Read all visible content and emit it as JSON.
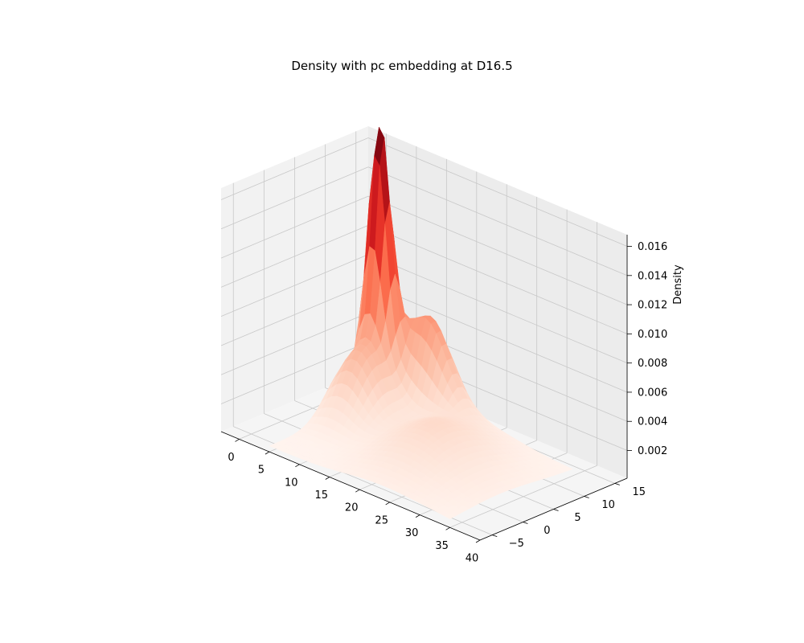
{
  "chart_data": {
    "type": "surface3d",
    "title": "Density with pc embedding at D16.5",
    "xlabel": "",
    "ylabel": "",
    "zlabel": "Density",
    "colormap": "Reds",
    "xlim": [
      -3,
      40
    ],
    "ylim": [
      -7,
      17
    ],
    "zlim": [
      0.0001,
      0.0168
    ],
    "x_ticks": [
      "0",
      "5",
      "10",
      "15",
      "20",
      "25",
      "30",
      "35",
      "40"
    ],
    "y_ticks": [
      "−5",
      "0",
      "5",
      "10",
      "15"
    ],
    "z_ticks": [
      "0.002",
      "0.004",
      "0.006",
      "0.008",
      "0.010",
      "0.012",
      "0.014",
      "0.016"
    ],
    "surface_x_range": [
      4,
      34
    ],
    "surface_y_range": [
      -6,
      14
    ],
    "peaks": [
      {
        "x": 6,
        "y": 10,
        "z": 0.0165
      },
      {
        "x": 12,
        "y": 12,
        "z": 0.0102
      }
    ],
    "grid": true,
    "pane_color": "#f2f2f2"
  }
}
